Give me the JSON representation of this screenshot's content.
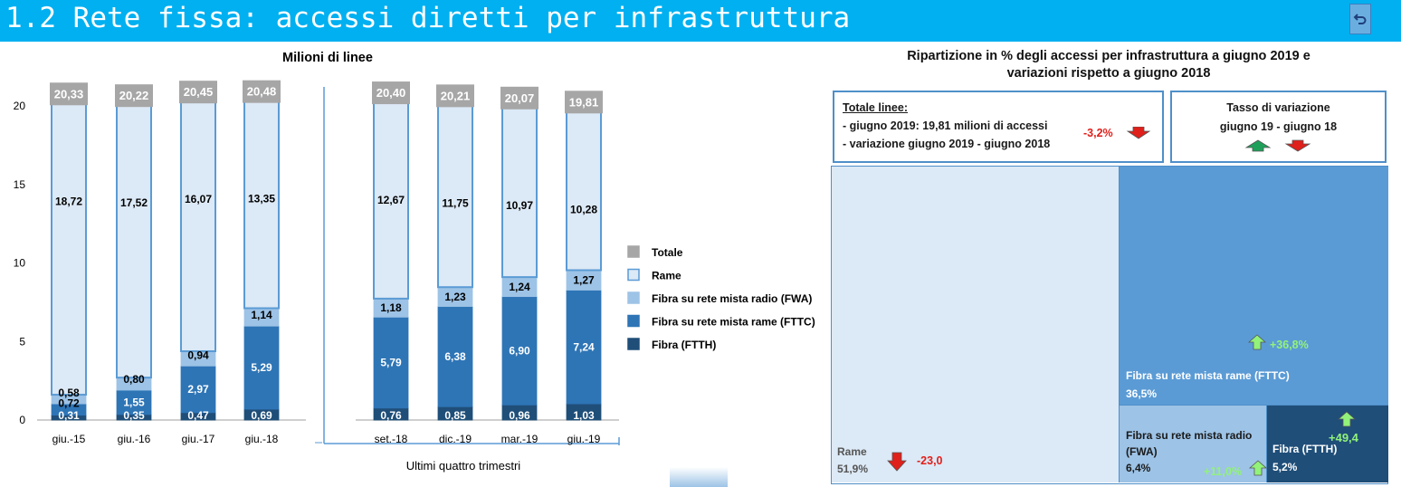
{
  "header": {
    "title": "1.2 Rete fissa: accessi diretti per infrastruttura"
  },
  "colors": {
    "totale": "#a6a6a6",
    "rame": "#dce9f6",
    "fwa": "#9dc3e6",
    "fttc": "#2e75b6",
    "ftth": "#1f4e79",
    "header": "#00b0f0",
    "treemap_rame": "#dce9f6",
    "treemap_fttc": "#5b9bd5",
    "treemap_fwa": "#9dc3e6",
    "treemap_ftth": "#1f4e79"
  },
  "chart_data": {
    "type": "bar",
    "title": "Milioni di linee",
    "categories": [
      "giu.-15",
      "giu.-16",
      "giu.-17",
      "giu.-18",
      "set.-18",
      "dic.-19",
      "mar.-19",
      "giu.-19"
    ],
    "group_label": "Ultimi quattro trimestri",
    "ylim": [
      0,
      20
    ],
    "yticks": [
      0,
      5,
      10,
      15,
      20
    ],
    "stacked": true,
    "series": [
      {
        "name": "Fibra (FTTH)",
        "values": [
          "0,31",
          "0,35",
          "0,47",
          "0,69",
          "0,76",
          "0,85",
          "0,96",
          "1,03"
        ]
      },
      {
        "name": "Fibra su rete mista rame (FTTC)",
        "values": [
          "0,72",
          "1,55",
          "2,97",
          "5,29",
          "5,79",
          "6,38",
          "6,90",
          "7,24"
        ]
      },
      {
        "name": "Fibra su rete mista radio (FWA)",
        "values": [
          "0,58",
          "0,80",
          "0,94",
          "1,14",
          "1,18",
          "1,23",
          "1,24",
          "1,27"
        ]
      },
      {
        "name": "Rame",
        "values": [
          "18,72",
          "17,52",
          "16,07",
          "13,35",
          "12,67",
          "11,75",
          "10,97",
          "10,28"
        ]
      }
    ],
    "totals": [
      "20,33",
      "20,22",
      "20,45",
      "20,48",
      "20,40",
      "20,21",
      "20,07",
      "19,81"
    ],
    "legend": [
      "Totale",
      "Rame",
      "Fibra su rete mista radio (FWA)",
      "Fibra su rete mista rame (FTTC)",
      "Fibra (FTTH)"
    ],
    "legend_position": "right"
  },
  "right": {
    "title": "Ripartizione in % degli accessi per infrastruttura a giugno 2019 e variazioni rispetto a giugno 2018",
    "totale": {
      "heading": "Totale linee:",
      "line1": "- giugno 2019: 19,81 milioni di accessi",
      "line2": "- variazione giugno 2019 - giugno 2018",
      "change": "-3,2%"
    },
    "tasso": {
      "line1": "Tasso di variazione",
      "line2": "giugno 19 - giugno 18"
    },
    "treemap": [
      {
        "key": "rame",
        "name": "Rame",
        "pct": "51,9%",
        "change": "-23,0",
        "direction": "down"
      },
      {
        "key": "fttc",
        "name": "Fibra su rete mista rame (FTTC)",
        "pct": "36,5%",
        "change": "+36,8%",
        "direction": "up"
      },
      {
        "key": "fwa",
        "name": "Fibra su rete mista radio (FWA)",
        "pct": "6,4%",
        "change": "+11,0%",
        "direction": "up"
      },
      {
        "key": "ftth",
        "name": "Fibra (FTTH)",
        "pct": "5,2%",
        "change": "+49,4",
        "direction": "up"
      }
    ]
  }
}
